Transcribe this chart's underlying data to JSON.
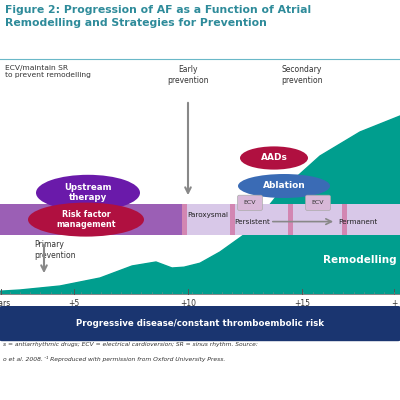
{
  "title": "Figure 2: Progression of AF as a Function of Atrial\nRemodelling and Strategies for Prevention",
  "title_color": "#2e8b9a",
  "bg_color": "#ffffff",
  "teal_curve_color": "#009e8e",
  "purple_band_color": "#9b5fb5",
  "light_purple_band_color": "#d8c8e8",
  "upstream_ellipse_color": "#6a1aaa",
  "upstream_text": "Upstream\ntherapy",
  "risk_ellipse_color": "#b01040",
  "risk_text": "Risk factor\nmanagement",
  "aads_ellipse_color": "#b01040",
  "aads_text": "AADs",
  "ablation_ellipse_color": "#3a6bb5",
  "ablation_text": "Ablation",
  "ecv_box_color": "#d8b8d8",
  "ecv_text": "ECV",
  "paroxysmal_text": "Paroxysmal",
  "persistent_text": "Persistent",
  "permanent_text": "Permanent",
  "remodelling_text": "Remodelling",
  "remodelling_text_color": "#ffffff",
  "primary_prevention_text": "Primary\nprevention",
  "ecv_sr_text": "ECV/maintain SR\nto prevent remodelling",
  "early_prevention_text": "Early\nprevention",
  "secondary_prevention_text": "Secondary\nprevention",
  "bottom_bar_color": "#1a3570",
  "bottom_bar_text": "Progressive disease/constant thromboembolic risk",
  "bottom_bar_text_color": "#ffffff",
  "x_labels": [
    "Years",
    "+5",
    "+10",
    "+15",
    "+"
  ],
  "x_positions": [
    0.02,
    1.85,
    4.7,
    7.55,
    9.85
  ],
  "footnote_line1": "s = antiarrhythmic drugs; ECV = electrical cardioversion; SR = sinus rhythm. Source:",
  "footnote_line2": "o et al. 2008.´¹ Reproduced with permission from Oxford University Press.",
  "arrow_color": "#888888",
  "pink_stripe_color": "#d070a0",
  "separator_color": "#6ab8c8"
}
